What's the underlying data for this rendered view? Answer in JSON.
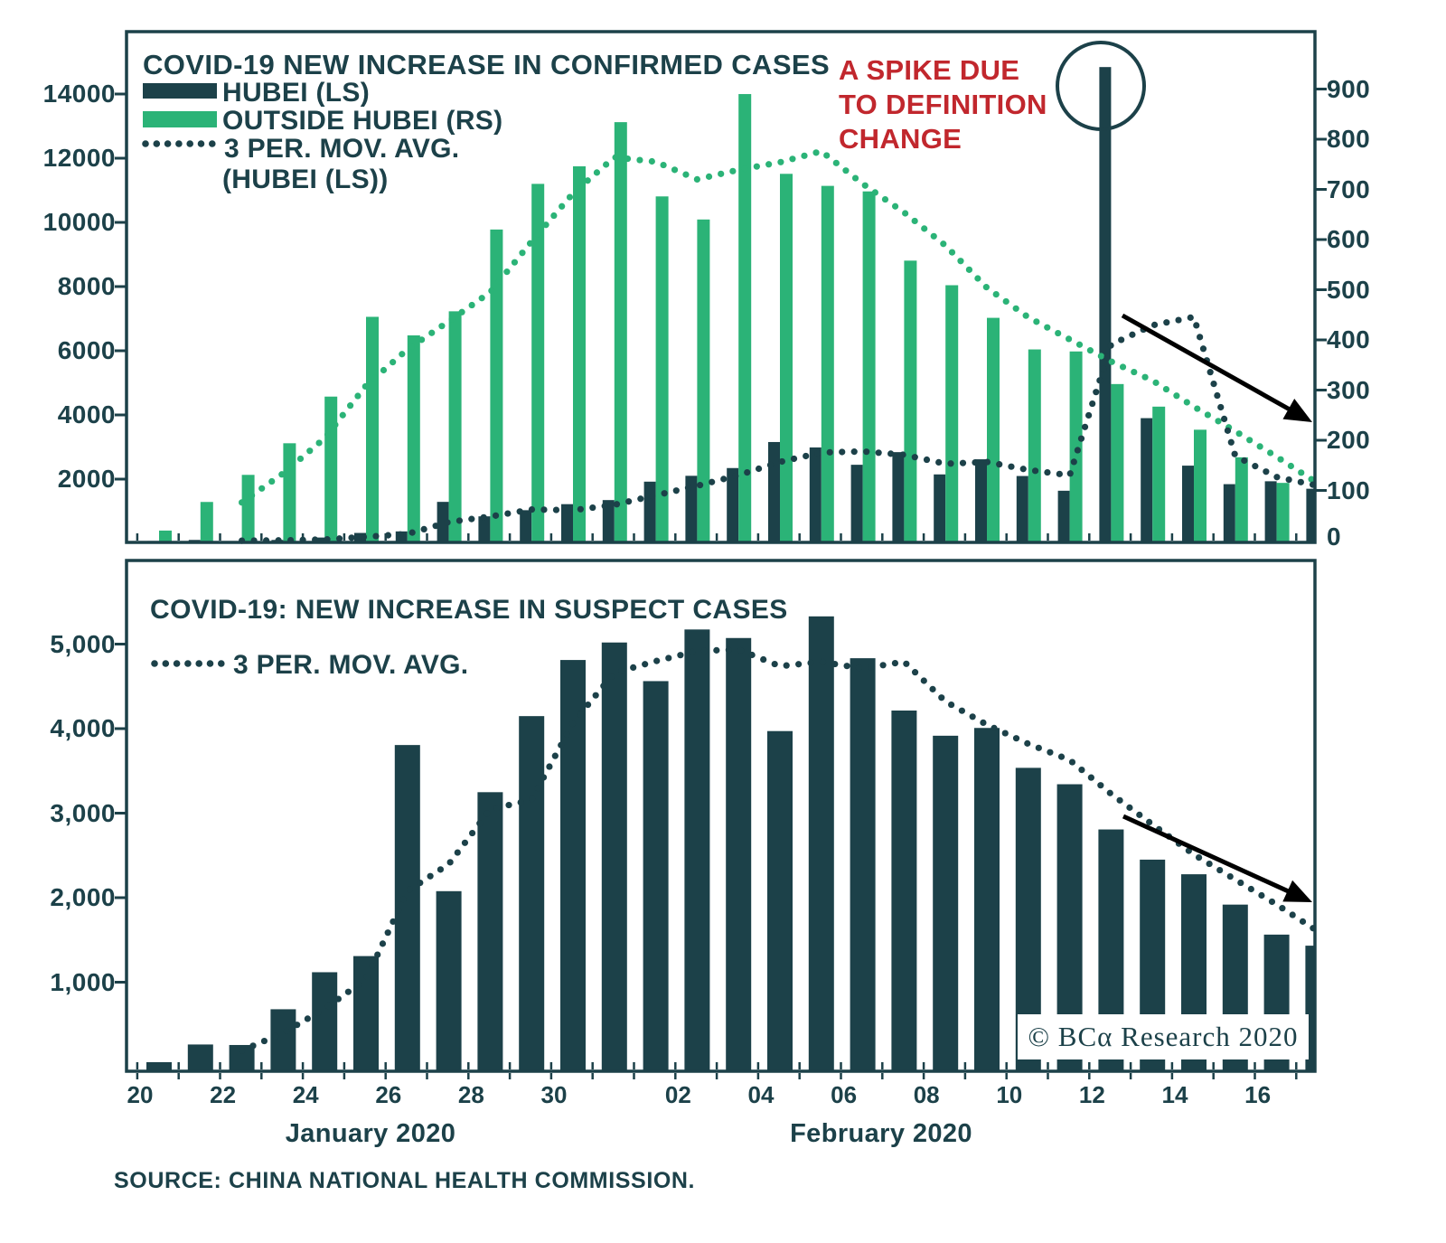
{
  "colors": {
    "dark": "#1c4149",
    "green": "#2bb377",
    "red": "#c1272d",
    "black": "#000000",
    "white": "#ffffff"
  },
  "top_chart": {
    "title": "COVID-19 NEW INCREASE IN CONFIRMED CASES",
    "legend": [
      {
        "label": "HUBEI (LS)",
        "swatch": "dark-bar"
      },
      {
        "label": "OUTSIDE HUBEI (RS)",
        "swatch": "green-bar"
      },
      {
        "label": "3 PER. MOV. AVG.",
        "swatch": "dotted-line"
      },
      {
        "label": "(HUBEI (LS))",
        "swatch": "none"
      }
    ],
    "annotation": {
      "lines": [
        "A SPIKE DUE",
        "TO DEFINITION",
        "CHANGE"
      ],
      "target": "Feb 12 Hubei spike bar"
    },
    "left_axis": {
      "ticks": [
        {
          "value": 14000,
          "label": "14000"
        },
        {
          "value": 12000,
          "label": "12000"
        },
        {
          "value": 10000,
          "label": "10000"
        },
        {
          "value": 8000,
          "label": "8000"
        },
        {
          "value": 6000,
          "label": "6000"
        },
        {
          "value": 4000,
          "label": "4000"
        },
        {
          "value": 2000,
          "label": "2000"
        }
      ]
    },
    "right_axis": {
      "ticks": [
        {
          "value": 900,
          "label": "900"
        },
        {
          "value": 800,
          "label": "800"
        },
        {
          "value": 700,
          "label": "700"
        },
        {
          "value": 600,
          "label": "600"
        },
        {
          "value": 500,
          "label": "500"
        },
        {
          "value": 400,
          "label": "400"
        },
        {
          "value": 300,
          "label": "300"
        },
        {
          "value": 200,
          "label": "200"
        },
        {
          "value": 100,
          "label": "100"
        },
        {
          "value": 0,
          "label": "0"
        }
      ]
    }
  },
  "bottom_chart": {
    "title": "COVID-19: NEW INCREASE IN SUSPECT CASES",
    "legend": [
      {
        "label": "3 PER. MOV. AVG.",
        "swatch": "dotted-line"
      }
    ],
    "left_axis": {
      "ticks": [
        {
          "value": 5000,
          "label": "5,000"
        },
        {
          "value": 4000,
          "label": "4,000"
        },
        {
          "value": 3000,
          "label": "3,000"
        },
        {
          "value": 2000,
          "label": "2,000"
        },
        {
          "value": 1000,
          "label": "1,000"
        }
      ]
    }
  },
  "x_axis": {
    "tick_labels": [
      {
        "text": "20",
        "day_index": 0
      },
      {
        "text": "22",
        "day_index": 2
      },
      {
        "text": "24",
        "day_index": 4
      },
      {
        "text": "26",
        "day_index": 6
      },
      {
        "text": "28",
        "day_index": 8
      },
      {
        "text": "30",
        "day_index": 10
      },
      {
        "text": "02",
        "day_index": 13
      },
      {
        "text": "04",
        "day_index": 15
      },
      {
        "text": "06",
        "day_index": 17
      },
      {
        "text": "08",
        "day_index": 19
      },
      {
        "text": "10",
        "day_index": 21
      },
      {
        "text": "12",
        "day_index": 23
      },
      {
        "text": "14",
        "day_index": 25
      },
      {
        "text": "16",
        "day_index": 27
      }
    ],
    "month_labels": [
      {
        "label": "January 2020"
      },
      {
        "label": "February 2020"
      }
    ]
  },
  "source": "SOURCE: CHINA NATIONAL HEALTH COMMISSION.",
  "watermark": "© BCα Research 2020",
  "chart_data": [
    {
      "type": "bar",
      "title": "COVID-19 NEW INCREASE IN CONFIRMED CASES",
      "categories": [
        "Jan 20",
        "Jan 21",
        "Jan 22",
        "Jan 23",
        "Jan 24",
        "Jan 25",
        "Jan 26",
        "Jan 27",
        "Jan 28",
        "Jan 29",
        "Jan 30",
        "Jan 31",
        "Feb 01",
        "Feb 02",
        "Feb 03",
        "Feb 04",
        "Feb 05",
        "Feb 06",
        "Feb 07",
        "Feb 08",
        "Feb 09",
        "Feb 10",
        "Feb 11",
        "Feb 12",
        "Feb 13",
        "Feb 14",
        "Feb 15",
        "Feb 16",
        "Feb 17"
      ],
      "left_ylim": [
        0,
        16500
      ],
      "right_ylim": [
        0,
        1010
      ],
      "grid": false,
      "legend_position": "top-left",
      "series": [
        {
          "name": "HUBEI (LS)",
          "kind": "bar",
          "axis": "left",
          "values": [
            72,
            105,
            69,
            105,
            180,
            323,
            371,
            1291,
            840,
            1032,
            1220,
            1347,
            1921,
            2103,
            2345,
            3156,
            2987,
            2447,
            2841,
            2147,
            2618,
            2097,
            1638,
            14840,
            3900,
            2420,
            1843,
            1933,
            1700
          ]
        },
        {
          "name": "OUTSIDE HUBEI (RS)",
          "kind": "bar",
          "axis": "right",
          "values": [
            20,
            77,
            131,
            194,
            287,
            446,
            409,
            457,
            620,
            711,
            746,
            834,
            686,
            640,
            890,
            731,
            707,
            696,
            558,
            509,
            444,
            381,
            377,
            312,
            267,
            221,
            166,
            115,
            79
          ]
        },
        {
          "name": "3 PER. MOV. AVG. (HUBEI (LS))",
          "kind": "dotted-line",
          "axis": "left",
          "values": [
            null,
            null,
            82,
            93,
            118,
            203,
            291,
            662,
            834,
            1054,
            1031,
            1200,
            1496,
            1790,
            2123,
            2535,
            2829,
            2863,
            2758,
            2478,
            2535,
            2287,
            2118,
            6192,
            6793,
            7053,
            2721,
            2065,
            1825
          ]
        },
        {
          "name": "3 PER. MOV. AVG. (OUTSIDE HUBEI (RS))",
          "kind": "dotted-line",
          "axis": "right",
          "values": [
            null,
            null,
            76,
            134,
            204,
            309,
            381,
            437,
            495,
            596,
            692,
            764,
            755,
            720,
            739,
            754,
            776,
            711,
            654,
            588,
            504,
            445,
            401,
            357,
            319,
            267,
            218,
            167,
            120
          ]
        }
      ]
    },
    {
      "type": "bar",
      "title": "COVID-19: NEW INCREASE IN SUSPECT CASES",
      "categories": [
        "Jan 20",
        "Jan 21",
        "Jan 22",
        "Jan 23",
        "Jan 24",
        "Jan 25",
        "Jan 26",
        "Jan 27",
        "Jan 28",
        "Jan 29",
        "Jan 30",
        "Jan 31",
        "Feb 01",
        "Feb 02",
        "Feb 03",
        "Feb 04",
        "Feb 05",
        "Feb 06",
        "Feb 07",
        "Feb 08",
        "Feb 09",
        "Feb 10",
        "Feb 11",
        "Feb 12",
        "Feb 13",
        "Feb 14",
        "Feb 15",
        "Feb 16",
        "Feb 17"
      ],
      "ylim": [
        0,
        6000
      ],
      "grid": false,
      "legend_position": "top-left",
      "series": [
        {
          "name": "NEW SUSPECT CASES",
          "kind": "bar",
          "axis": "left",
          "values": [
            54,
            263,
            257,
            680,
            1118,
            1309,
            3806,
            2077,
            3248,
            4148,
            4812,
            5019,
            4562,
            5173,
            5072,
            3971,
            5328,
            4833,
            4214,
            3916,
            4008,
            3536,
            3342,
            2807,
            2450,
            2277,
            1918,
            1563,
            1432
          ]
        },
        {
          "name": "3 PER. MOV. AVG.",
          "kind": "dotted-line",
          "axis": "left",
          "values": [
            null,
            null,
            191,
            400,
            685,
            1036,
            2078,
            2397,
            3044,
            3158,
            4069,
            4660,
            4798,
            4918,
            4936,
            4739,
            4790,
            4711,
            4792,
            4321,
            4046,
            3820,
            3629,
            3228,
            2866,
            2511,
            2215,
            1919,
            1638
          ]
        }
      ]
    }
  ]
}
